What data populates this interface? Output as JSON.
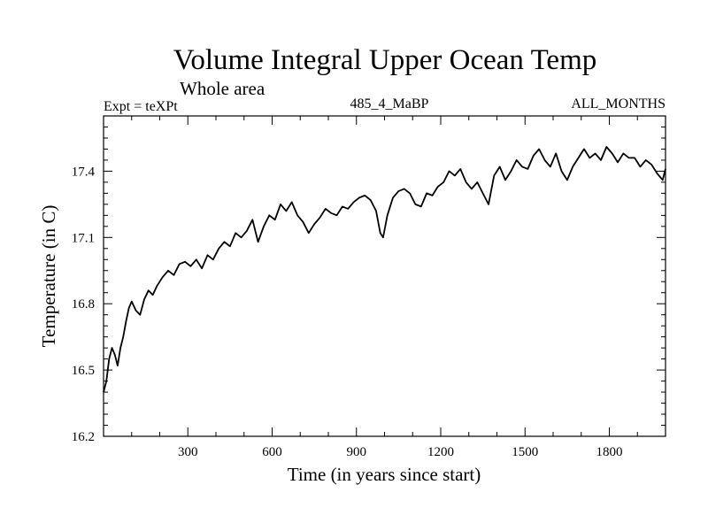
{
  "chart_data": {
    "type": "line",
    "title": "Volume Integral Upper Ocean Temp",
    "subtitle": "Whole area",
    "left_label": "Expt = teXPt",
    "center_label": "485_4_MaBP",
    "right_label": "ALL_MONTHS",
    "xlabel": "Time (in years since start)",
    "ylabel": "Temperature (in C)",
    "xlim": [
      0,
      2000
    ],
    "ylim": [
      16.2,
      17.65
    ],
    "x_ticks": [
      300,
      600,
      900,
      1200,
      1500,
      1800
    ],
    "x_tick_labels": [
      "300",
      "600",
      "900",
      "1200",
      "1500",
      "1800"
    ],
    "y_ticks": [
      16.2,
      16.5,
      16.8,
      17.1,
      17.4
    ],
    "y_tick_labels": [
      "16.2",
      "16.5",
      "16.8",
      "17.1",
      "17.4"
    ],
    "grid": false,
    "series": [
      {
        "color": "#000000",
        "x": [
          0,
          10,
          20,
          30,
          40,
          50,
          60,
          70,
          80,
          90,
          100,
          115,
          130,
          145,
          160,
          175,
          190,
          210,
          230,
          250,
          270,
          290,
          310,
          330,
          350,
          370,
          390,
          410,
          430,
          450,
          470,
          490,
          510,
          530,
          550,
          570,
          590,
          610,
          630,
          650,
          670,
          690,
          710,
          730,
          750,
          770,
          790,
          810,
          830,
          850,
          870,
          890,
          910,
          930,
          950,
          970,
          985,
          995,
          1010,
          1030,
          1050,
          1070,
          1090,
          1110,
          1130,
          1150,
          1170,
          1190,
          1210,
          1230,
          1250,
          1270,
          1290,
          1310,
          1330,
          1350,
          1370,
          1390,
          1410,
          1430,
          1450,
          1470,
          1490,
          1510,
          1530,
          1550,
          1570,
          1590,
          1610,
          1630,
          1650,
          1670,
          1690,
          1710,
          1730,
          1750,
          1770,
          1790,
          1810,
          1830,
          1850,
          1870,
          1890,
          1910,
          1930,
          1950,
          1970,
          1990,
          2000
        ],
        "y": [
          16.4,
          16.45,
          16.55,
          16.6,
          16.57,
          16.52,
          16.6,
          16.65,
          16.72,
          16.78,
          16.81,
          16.77,
          16.75,
          16.82,
          16.86,
          16.84,
          16.88,
          16.92,
          16.95,
          16.93,
          16.98,
          16.99,
          16.97,
          17.0,
          16.96,
          17.02,
          17.0,
          17.05,
          17.08,
          17.06,
          17.12,
          17.1,
          17.13,
          17.18,
          17.08,
          17.15,
          17.2,
          17.18,
          17.25,
          17.22,
          17.26,
          17.2,
          17.17,
          17.12,
          17.16,
          17.19,
          17.23,
          17.21,
          17.2,
          17.24,
          17.23,
          17.26,
          17.28,
          17.29,
          17.27,
          17.22,
          17.12,
          17.1,
          17.2,
          17.28,
          17.31,
          17.32,
          17.3,
          17.25,
          17.24,
          17.3,
          17.29,
          17.33,
          17.35,
          17.4,
          17.38,
          17.41,
          17.35,
          17.32,
          17.35,
          17.3,
          17.25,
          17.38,
          17.42,
          17.36,
          17.4,
          17.45,
          17.42,
          17.41,
          17.47,
          17.5,
          17.45,
          17.42,
          17.48,
          17.4,
          17.36,
          17.42,
          17.46,
          17.5,
          17.46,
          17.48,
          17.45,
          17.51,
          17.48,
          17.44,
          17.48,
          17.46,
          17.46,
          17.42,
          17.45,
          17.43,
          17.39,
          17.36,
          17.41
        ]
      }
    ]
  }
}
